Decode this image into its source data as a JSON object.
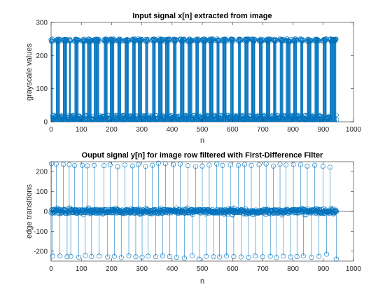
{
  "colors": {
    "series": "#0072BD",
    "axis": "#262626",
    "zero_line": "#000000"
  },
  "chart_data": [
    {
      "type": "stem",
      "title": "Input signal x[n] extracted from image",
      "xlabel": "n",
      "ylabel": "grayscale values",
      "xlim": [
        0,
        1000
      ],
      "ylim": [
        0,
        300
      ],
      "xticks": [
        "0",
        "100",
        "200",
        "300",
        "400",
        "500",
        "600",
        "700",
        "800",
        "900",
        "1000"
      ],
      "yticks": [
        "0",
        "100",
        "200",
        "300"
      ],
      "grid": false,
      "marker": "circle",
      "n_points": 945,
      "high_value": 250,
      "low_value": 6,
      "high_runs": [
        [
          0,
          4
        ],
        [
          17,
          28
        ],
        [
          40,
          52
        ],
        [
          60,
          64
        ],
        [
          78,
          90
        ],
        [
          103,
          112
        ],
        [
          120,
          133
        ],
        [
          142,
          158
        ],
        [
          175,
          186
        ],
        [
          195,
          208
        ],
        [
          220,
          231
        ],
        [
          244,
          256
        ],
        [
          269,
          279
        ],
        [
          288,
          300
        ],
        [
          312,
          320
        ],
        [
          335,
          345
        ],
        [
          355,
          368
        ],
        [
          378,
          391
        ],
        [
          404,
          414
        ],
        [
          427,
          440
        ],
        [
          452,
          466
        ],
        [
          478,
          488
        ],
        [
          500,
          512
        ],
        [
          523,
          536
        ],
        [
          548,
          556
        ],
        [
          567,
          579
        ],
        [
          593,
          603
        ],
        [
          619,
          627
        ],
        [
          640,
          652
        ],
        [
          662,
          674
        ],
        [
          688,
          699
        ],
        [
          711,
          724
        ],
        [
          735,
          744
        ],
        [
          757,
          767
        ],
        [
          777,
          791
        ],
        [
          801,
          812
        ],
        [
          825,
          833
        ],
        [
          847,
          860
        ],
        [
          872,
          885
        ],
        [
          899,
          910
        ],
        [
          922,
          942
        ]
      ]
    },
    {
      "type": "stem",
      "title": "Ouput signal y[n] for image row filtered with First-Difference Filter",
      "xlabel": "n",
      "ylabel": "edge transitions",
      "xlim": [
        0,
        1000
      ],
      "ylim": [
        -250,
        250
      ],
      "xticks": [
        "0",
        "100",
        "200",
        "300",
        "400",
        "500",
        "600",
        "700",
        "800",
        "900",
        "1000"
      ],
      "yticks": [
        "-200",
        "-100",
        "0",
        "100",
        "200"
      ],
      "grid": false,
      "marker": "circle",
      "n_points": 945,
      "transitions": [
        {
          "n": 1,
          "y": 240
        },
        {
          "n": 5,
          "y": -225
        },
        {
          "n": 17,
          "y": 238
        },
        {
          "n": 29,
          "y": -224
        },
        {
          "n": 40,
          "y": 236
        },
        {
          "n": 53,
          "y": -228
        },
        {
          "n": 60,
          "y": 235
        },
        {
          "n": 65,
          "y": -226
        },
        {
          "n": 78,
          "y": 230
        },
        {
          "n": 91,
          "y": -230
        },
        {
          "n": 103,
          "y": 232
        },
        {
          "n": 113,
          "y": -222
        },
        {
          "n": 120,
          "y": 229
        },
        {
          "n": 134,
          "y": -227
        },
        {
          "n": 142,
          "y": 231
        },
        {
          "n": 159,
          "y": -225
        },
        {
          "n": 175,
          "y": 230
        },
        {
          "n": 187,
          "y": -229
        },
        {
          "n": 195,
          "y": 234
        },
        {
          "n": 209,
          "y": -226
        },
        {
          "n": 220,
          "y": 225
        },
        {
          "n": 232,
          "y": -232
        },
        {
          "n": 244,
          "y": 233
        },
        {
          "n": 257,
          "y": -224
        },
        {
          "n": 269,
          "y": 229
        },
        {
          "n": 280,
          "y": -228
        },
        {
          "n": 288,
          "y": 236
        },
        {
          "n": 301,
          "y": -230
        },
        {
          "n": 312,
          "y": 226
        },
        {
          "n": 321,
          "y": -225
        },
        {
          "n": 335,
          "y": 232
        },
        {
          "n": 346,
          "y": -228
        },
        {
          "n": 355,
          "y": 242
        },
        {
          "n": 369,
          "y": -224
        },
        {
          "n": 378,
          "y": 240
        },
        {
          "n": 392,
          "y": -227
        },
        {
          "n": 404,
          "y": 236
        },
        {
          "n": 415,
          "y": -231
        },
        {
          "n": 427,
          "y": 238
        },
        {
          "n": 441,
          "y": -235
        },
        {
          "n": 452,
          "y": 230
        },
        {
          "n": 467,
          "y": -223
        },
        {
          "n": 478,
          "y": 226
        },
        {
          "n": 489,
          "y": -240
        },
        {
          "n": 500,
          "y": 228
        },
        {
          "n": 513,
          "y": -226
        },
        {
          "n": 523,
          "y": 233
        },
        {
          "n": 537,
          "y": -228
        },
        {
          "n": 548,
          "y": 239
        },
        {
          "n": 557,
          "y": -229
        },
        {
          "n": 567,
          "y": 231
        },
        {
          "n": 580,
          "y": -225
        },
        {
          "n": 593,
          "y": 233
        },
        {
          "n": 604,
          "y": -227
        },
        {
          "n": 619,
          "y": 232
        },
        {
          "n": 628,
          "y": -229
        },
        {
          "n": 640,
          "y": 236
        },
        {
          "n": 653,
          "y": -231
        },
        {
          "n": 662,
          "y": 231
        },
        {
          "n": 675,
          "y": -224
        },
        {
          "n": 688,
          "y": 234
        },
        {
          "n": 700,
          "y": -228
        },
        {
          "n": 711,
          "y": 239
        },
        {
          "n": 725,
          "y": -226
        },
        {
          "n": 735,
          "y": 228
        },
        {
          "n": 745,
          "y": -232
        },
        {
          "n": 757,
          "y": 237
        },
        {
          "n": 768,
          "y": -225
        },
        {
          "n": 777,
          "y": 233
        },
        {
          "n": 792,
          "y": -229
        },
        {
          "n": 801,
          "y": 236
        },
        {
          "n": 813,
          "y": -227
        },
        {
          "n": 825,
          "y": 234
        },
        {
          "n": 834,
          "y": -224
        },
        {
          "n": 847,
          "y": 228
        },
        {
          "n": 861,
          "y": -231
        },
        {
          "n": 872,
          "y": 232
        },
        {
          "n": 886,
          "y": -226
        },
        {
          "n": 899,
          "y": 227
        },
        {
          "n": 911,
          "y": -215
        },
        {
          "n": 922,
          "y": 222
        },
        {
          "n": 943,
          "y": -240
        }
      ]
    }
  ]
}
